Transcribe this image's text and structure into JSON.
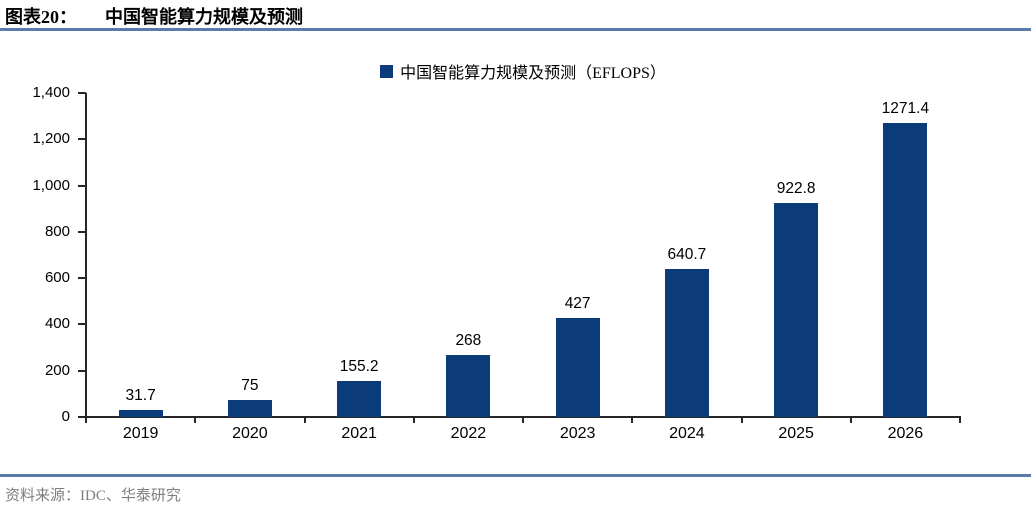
{
  "figure": {
    "label": "图表20：",
    "title": "中国智能算力规模及预测",
    "source_label": "资料来源：IDC、华泰研究"
  },
  "legend": {
    "label": "中国智能算力规模及预测（EFLOPS）"
  },
  "colors": {
    "bar": "#0C3B7C",
    "divider": "#5B7BA8",
    "axis": "#262626",
    "source_text": "#7F7F7F"
  },
  "chart_data": {
    "type": "bar",
    "title": "中国智能算力规模及预测",
    "series_name": "中国智能算力规模及预测（EFLOPS）",
    "categories": [
      "2019",
      "2020",
      "2021",
      "2022",
      "2023",
      "2024",
      "2025",
      "2026"
    ],
    "values": [
      31.7,
      75,
      155.2,
      268,
      427,
      640.7,
      922.8,
      1271.4
    ],
    "data_labels": [
      "31.7",
      "75",
      "155.2",
      "268",
      "427",
      "640.7",
      "922.8",
      "1271.4"
    ],
    "xlabel": "",
    "ylabel": "",
    "ylim": [
      0,
      1400
    ],
    "ytick_step": 200,
    "ytick_labels": [
      "0",
      "200",
      "400",
      "600",
      "800",
      "1,000",
      "1,200",
      "1,400"
    ],
    "grid": false,
    "legend_position": "top-center",
    "data_labels_shown": true
  }
}
